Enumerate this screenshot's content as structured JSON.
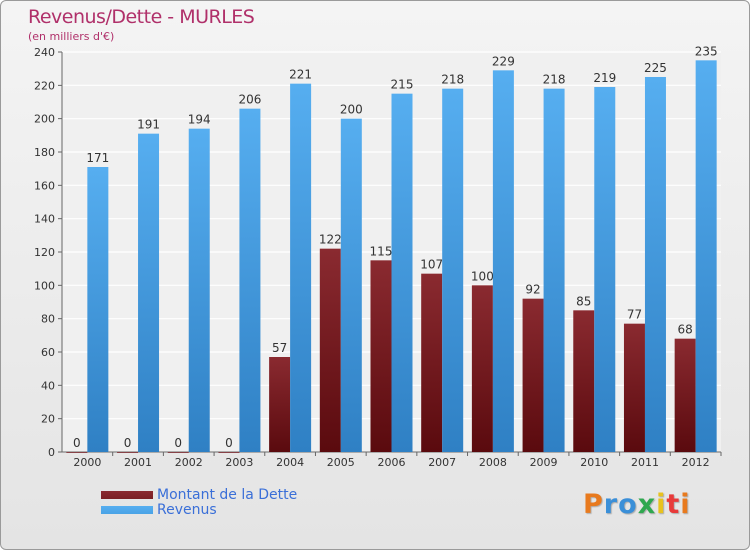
{
  "title": "Revenus/Dette - MURLES",
  "subtitle": "(en milliers d'€)",
  "legend": {
    "debt_label": "Montant de la Dette",
    "revenue_label": "Revenus"
  },
  "logo": {
    "text": "Proxiti",
    "letter_colors": [
      "#e87a1e",
      "#3a8fd8",
      "#3a8fd8",
      "#2fa84f",
      "#e8c21e",
      "#e83a3a",
      "#e87a1e"
    ]
  },
  "colors": {
    "debt": "#7a1f24",
    "revenue": "#4aa3e6",
    "title": "#b0306a",
    "legend_text": "#3a6fd8"
  },
  "chart_data": {
    "type": "bar",
    "categories": [
      "2000",
      "2001",
      "2002",
      "2003",
      "2004",
      "2005",
      "2006",
      "2007",
      "2008",
      "2009",
      "2010",
      "2011",
      "2012"
    ],
    "series": [
      {
        "name": "Montant de la Dette",
        "values": [
          0,
          0,
          0,
          0,
          57,
          122,
          115,
          107,
          100,
          92,
          85,
          77,
          68
        ]
      },
      {
        "name": "Revenus",
        "values": [
          171,
          191,
          194,
          206,
          221,
          200,
          215,
          218,
          229,
          218,
          219,
          225,
          235
        ]
      }
    ],
    "ylim": [
      0,
      240
    ],
    "yticks": [
      0,
      20,
      40,
      60,
      80,
      100,
      120,
      140,
      160,
      180,
      200,
      220,
      240
    ],
    "grid": true,
    "legend_position": "bottom-left"
  }
}
